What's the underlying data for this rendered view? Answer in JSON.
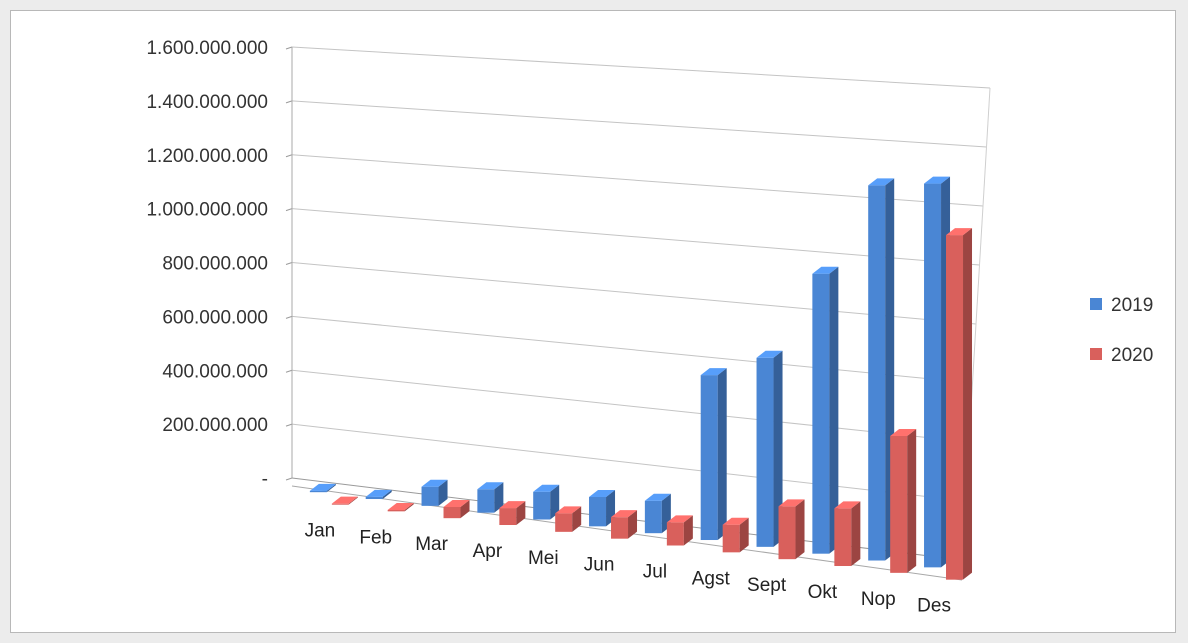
{
  "chart_data": {
    "type": "bar",
    "categories": [
      "Jan",
      "Feb",
      "Mar",
      "Apr",
      "Mei",
      "Jun",
      "Jul",
      "Agst",
      "Sept",
      "Okt",
      "Nop",
      "Des"
    ],
    "series": [
      {
        "name": "2019",
        "color": "#4a86d4",
        "values": [
          5000000,
          8000000,
          70000000,
          85000000,
          100000000,
          105000000,
          115000000,
          580000000,
          660000000,
          970000000,
          1290000000,
          1310000000
        ]
      },
      {
        "name": "2020",
        "color": "#d9605c",
        "values": [
          3000000,
          5000000,
          40000000,
          60000000,
          65000000,
          75000000,
          80000000,
          95000000,
          180000000,
          195000000,
          460000000,
          1150000000
        ]
      }
    ],
    "yticks": [
      "-",
      "200.000.000",
      "400.000.000",
      "600.000.000",
      "800.000.000",
      "1.000.000.000",
      "1.200.000.000",
      "1.400.000.000",
      "1.600.000.000"
    ],
    "ylim": [
      0,
      1600000000
    ],
    "grid": true,
    "legend": "right",
    "style": "3d-clustered-column"
  }
}
